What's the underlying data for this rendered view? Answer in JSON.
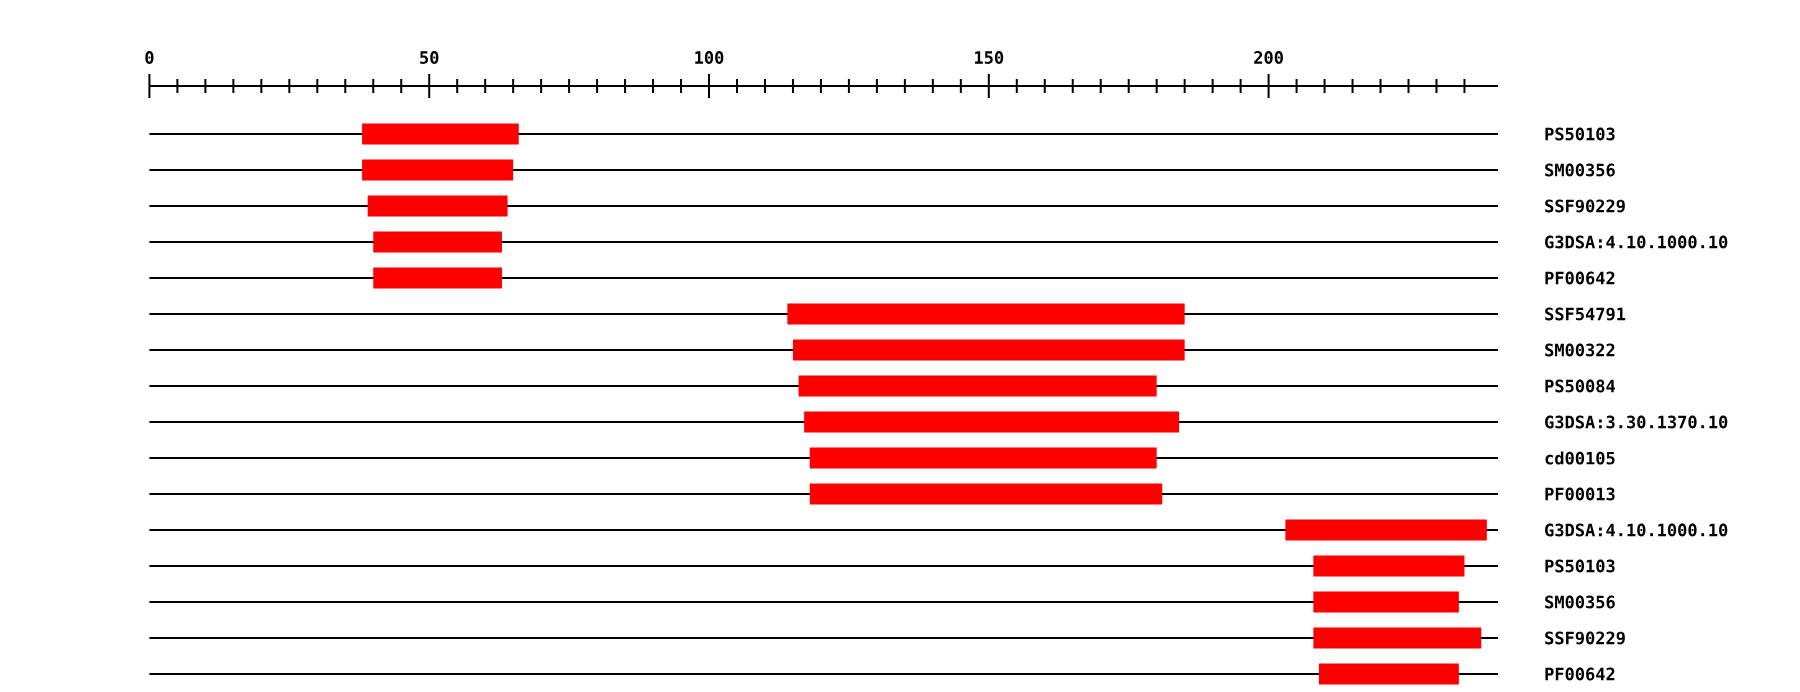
{
  "chart_data": {
    "type": "bar",
    "orientation": "horizontal",
    "color": "#ff0000",
    "grid": "y",
    "categories": [
      "PS50103",
      "SM00356",
      "SSF90229",
      "G3DSA:4.10.1000.10",
      "PF00642",
      "SSF54791",
      "SM00322",
      "PS50084",
      "G3DSA:3.30.1370.10",
      "cd00105",
      "PF00013",
      "G3DSA:4.10.1000.10",
      "PS50103",
      "SM00356",
      "SSF90229",
      "PF00642"
    ],
    "base": [
      38,
      38,
      39,
      40,
      40,
      114,
      115,
      116,
      117,
      118,
      118,
      203,
      208,
      208,
      208,
      209
    ],
    "values": [
      28,
      27,
      25,
      23,
      23,
      71,
      70,
      64,
      67,
      62,
      63,
      36,
      27,
      26,
      30,
      25
    ],
    "xlim": [
      0,
      241
    ],
    "xticks": [
      0,
      {
        "value": 5,
        "label": null
      },
      {
        "value": 10,
        "label": null
      },
      {
        "value": 15,
        "label": null
      },
      {
        "value": 20,
        "label": null
      },
      {
        "value": 25,
        "label": null
      },
      {
        "value": 30,
        "label": null
      },
      {
        "value": 35,
        "label": null
      },
      {
        "value": 40,
        "label": null
      },
      {
        "value": 45,
        "label": null
      },
      50,
      {
        "value": 55,
        "label": null
      },
      {
        "value": 60,
        "label": null
      },
      {
        "value": 65,
        "label": null
      },
      {
        "value": 70,
        "label": null
      },
      {
        "value": 75,
        "label": null
      },
      {
        "value": 80,
        "label": null
      },
      {
        "value": 85,
        "label": null
      },
      {
        "value": 90,
        "label": null
      },
      {
        "value": 95,
        "label": null
      },
      100,
      {
        "value": 105,
        "label": null
      },
      {
        "value": 110,
        "label": null
      },
      {
        "value": 115,
        "label": null
      },
      {
        "value": 120,
        "label": null
      },
      {
        "value": 125,
        "label": null
      },
      {
        "value": 130,
        "label": null
      },
      {
        "value": 135,
        "label": null
      },
      {
        "value": 140,
        "label": null
      },
      {
        "value": 145,
        "label": null
      },
      150,
      {
        "value": 155,
        "label": null
      },
      {
        "value": 160,
        "label": null
      },
      {
        "value": 165,
        "label": null
      },
      {
        "value": 170,
        "label": null
      },
      {
        "value": 175,
        "label": null
      },
      {
        "value": 180,
        "label": null
      },
      {
        "value": 185,
        "label": null
      },
      {
        "value": 190,
        "label": null
      },
      {
        "value": 195,
        "label": null
      },
      200,
      {
        "value": 205,
        "label": null
      },
      {
        "value": 210,
        "label": null
      },
      {
        "value": 215,
        "label": null
      },
      {
        "value": 220,
        "label": null
      },
      {
        "value": 225,
        "label": null
      },
      {
        "value": 230,
        "label": null
      },
      {
        "value": 235,
        "label": null
      }
    ]
  }
}
